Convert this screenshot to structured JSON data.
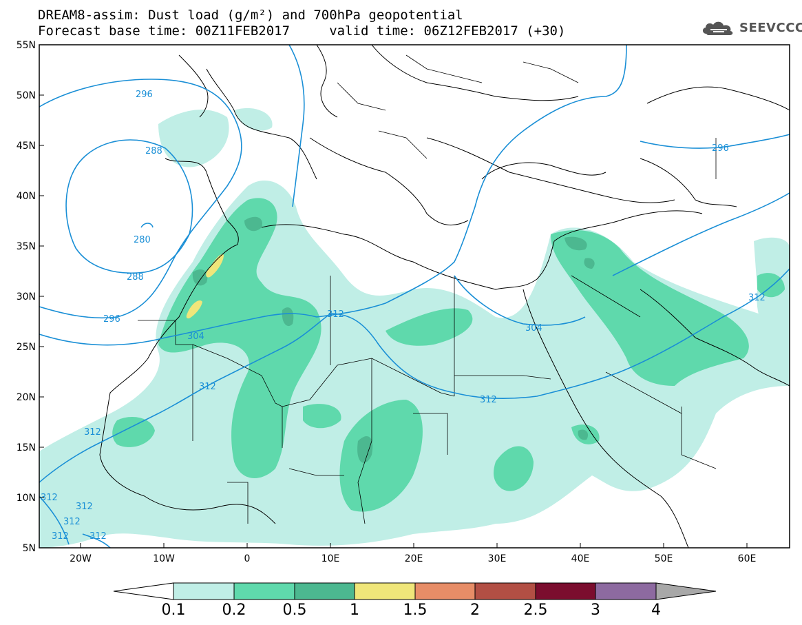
{
  "title": {
    "line1": "DREAM8-assim: Dust load (g/m²) and 700hPa geopotential",
    "line2": "Forecast base time: 00Z11FEB2017     valid time: 06Z12FEB2017 (+30)"
  },
  "logo": {
    "text": "SEEVCCC",
    "icon": "cloud-logo-icon"
  },
  "map": {
    "lon_range": [
      -25,
      65
    ],
    "lat_range": [
      5,
      55
    ],
    "y_ticks": [
      "55N",
      "50N",
      "45N",
      "40N",
      "35N",
      "30N",
      "25N",
      "20N",
      "15N",
      "10N",
      "5N"
    ],
    "x_ticks": [
      "20W",
      "10W",
      "0",
      "10E",
      "20E",
      "30E",
      "40E",
      "50E",
      "60E"
    ],
    "contour_color": "#1a8fd6",
    "contour_labels": [
      "296",
      "288",
      "280",
      "288",
      "296",
      "304",
      "312",
      "312",
      "312",
      "312",
      "304",
      "312",
      "296",
      "312",
      "312",
      "312",
      "312",
      "312"
    ]
  },
  "colorbar": {
    "labels": [
      "0.1",
      "0.2",
      "0.5",
      "1",
      "1.5",
      "2",
      "2.5",
      "3",
      "4"
    ],
    "colors": [
      "#c0eee6",
      "#5fd9ac",
      "#4cb890",
      "#f0e67a",
      "#e78d67",
      "#b24f44",
      "#7b0d2e",
      "#8d6aa0",
      "#a8a8a8"
    ]
  }
}
